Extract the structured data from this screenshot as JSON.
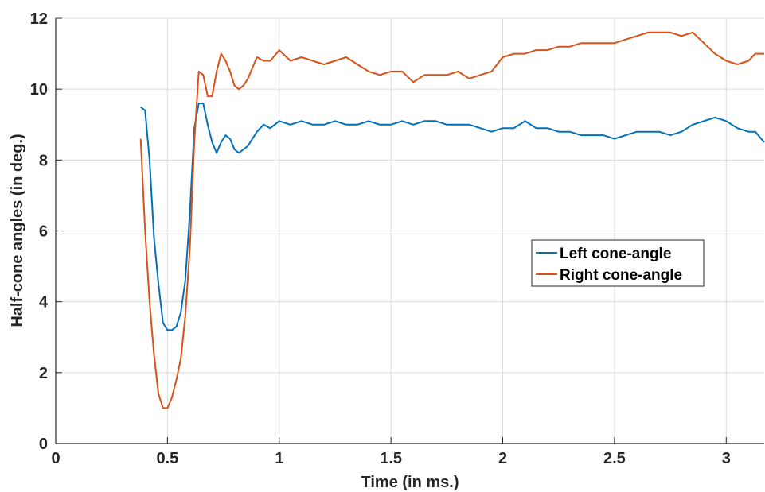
{
  "chart_data": {
    "type": "line",
    "title": "",
    "xlabel": "Time (in ms.)",
    "ylabel": "Half-cone angles (in deg.)",
    "xlim": [
      0,
      3.17
    ],
    "ylim": [
      0,
      12
    ],
    "xticks": [
      0,
      0.5,
      1,
      1.5,
      2,
      2.5,
      3
    ],
    "xtick_labels": [
      "0",
      "0.5",
      "1",
      "1.5",
      "2",
      "2.5",
      "3"
    ],
    "yticks": [
      0,
      2,
      4,
      6,
      8,
      10,
      12
    ],
    "ytick_labels": [
      "0",
      "2",
      "4",
      "6",
      "8",
      "10",
      "12"
    ],
    "grid": true,
    "legend_position": "right-middle",
    "series": [
      {
        "name": "Left cone-angle",
        "color": "#0072bd",
        "x": [
          0.38,
          0.4,
          0.42,
          0.44,
          0.46,
          0.48,
          0.5,
          0.52,
          0.54,
          0.56,
          0.58,
          0.6,
          0.62,
          0.64,
          0.66,
          0.68,
          0.7,
          0.72,
          0.74,
          0.76,
          0.78,
          0.8,
          0.82,
          0.84,
          0.86,
          0.88,
          0.9,
          0.93,
          0.96,
          1.0,
          1.05,
          1.1,
          1.15,
          1.2,
          1.25,
          1.3,
          1.35,
          1.4,
          1.45,
          1.5,
          1.55,
          1.6,
          1.65,
          1.7,
          1.75,
          1.8,
          1.85,
          1.9,
          1.95,
          2.0,
          2.05,
          2.1,
          2.15,
          2.2,
          2.25,
          2.3,
          2.35,
          2.4,
          2.45,
          2.5,
          2.55,
          2.6,
          2.65,
          2.7,
          2.75,
          2.8,
          2.85,
          2.9,
          2.95,
          3.0,
          3.05,
          3.1,
          3.13,
          3.17
        ],
        "values": [
          9.5,
          9.4,
          8.0,
          5.8,
          4.5,
          3.4,
          3.2,
          3.2,
          3.3,
          3.7,
          4.6,
          6.5,
          8.9,
          9.6,
          9.6,
          9.0,
          8.5,
          8.2,
          8.5,
          8.7,
          8.6,
          8.3,
          8.2,
          8.3,
          8.4,
          8.6,
          8.8,
          9.0,
          8.9,
          9.1,
          9.0,
          9.1,
          9.0,
          9.0,
          9.1,
          9.0,
          9.0,
          9.1,
          9.0,
          9.0,
          9.1,
          9.0,
          9.1,
          9.1,
          9.0,
          9.0,
          9.0,
          8.9,
          8.8,
          8.9,
          8.9,
          9.1,
          8.9,
          8.9,
          8.8,
          8.8,
          8.7,
          8.7,
          8.7,
          8.6,
          8.7,
          8.8,
          8.8,
          8.8,
          8.7,
          8.8,
          9.0,
          9.1,
          9.2,
          9.1,
          8.9,
          8.8,
          8.8,
          8.5
        ]
      },
      {
        "name": "Right cone-angle",
        "color": "#d95319",
        "x": [
          0.38,
          0.4,
          0.42,
          0.44,
          0.46,
          0.48,
          0.5,
          0.52,
          0.54,
          0.56,
          0.58,
          0.6,
          0.62,
          0.64,
          0.66,
          0.68,
          0.7,
          0.72,
          0.74,
          0.76,
          0.78,
          0.8,
          0.82,
          0.84,
          0.86,
          0.88,
          0.9,
          0.93,
          0.96,
          1.0,
          1.05,
          1.1,
          1.15,
          1.2,
          1.25,
          1.3,
          1.35,
          1.4,
          1.45,
          1.5,
          1.55,
          1.6,
          1.65,
          1.7,
          1.75,
          1.8,
          1.85,
          1.9,
          1.95,
          2.0,
          2.05,
          2.1,
          2.15,
          2.2,
          2.25,
          2.3,
          2.35,
          2.4,
          2.45,
          2.5,
          2.55,
          2.6,
          2.65,
          2.7,
          2.75,
          2.8,
          2.85,
          2.9,
          2.95,
          3.0,
          3.05,
          3.1,
          3.13,
          3.17
        ],
        "values": [
          8.6,
          6.0,
          4.0,
          2.5,
          1.4,
          1.0,
          1.0,
          1.3,
          1.8,
          2.4,
          3.6,
          5.5,
          8.5,
          10.5,
          10.4,
          9.8,
          9.8,
          10.5,
          11.0,
          10.8,
          10.5,
          10.1,
          10.0,
          10.1,
          10.3,
          10.6,
          10.9,
          10.8,
          10.8,
          11.1,
          10.8,
          10.9,
          10.8,
          10.7,
          10.8,
          10.9,
          10.7,
          10.5,
          10.4,
          10.5,
          10.5,
          10.2,
          10.4,
          10.4,
          10.4,
          10.5,
          10.3,
          10.4,
          10.5,
          10.9,
          11.0,
          11.0,
          11.1,
          11.1,
          11.2,
          11.2,
          11.3,
          11.3,
          11.3,
          11.3,
          11.4,
          11.5,
          11.6,
          11.6,
          11.6,
          11.5,
          11.6,
          11.3,
          11.0,
          10.8,
          10.7,
          10.8,
          11.0,
          11.0
        ]
      }
    ]
  }
}
